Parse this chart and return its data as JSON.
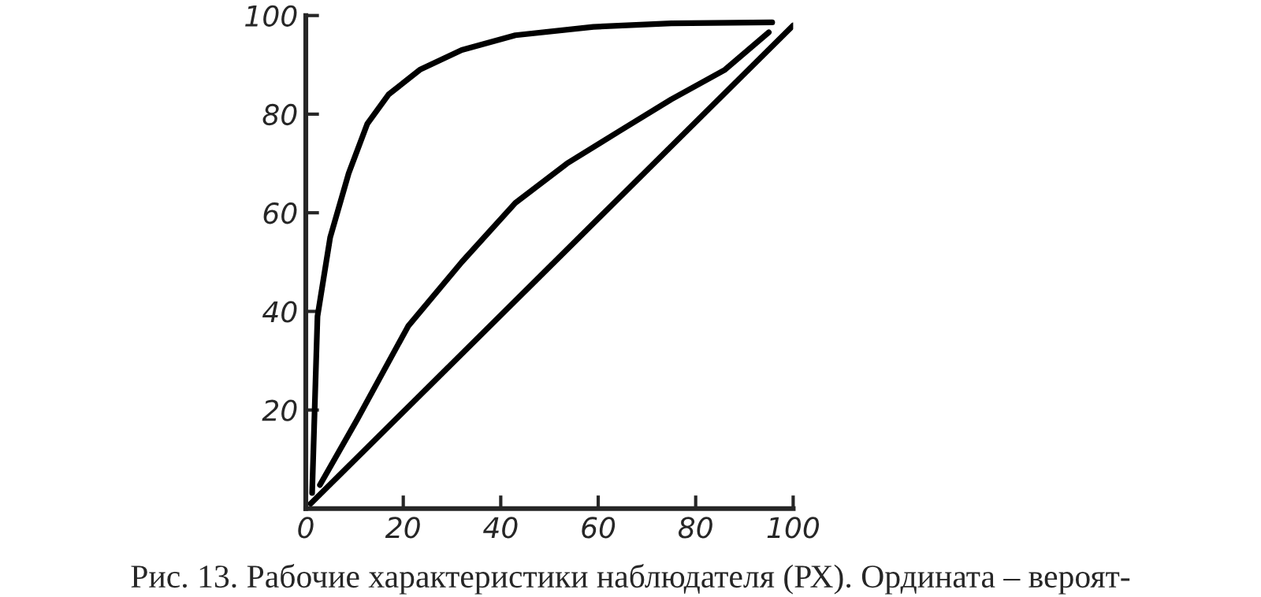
{
  "chart_data": {
    "type": "line",
    "xlim": [
      0,
      100
    ],
    "ylim": [
      0,
      100
    ],
    "xticks": [
      0,
      20,
      40,
      60,
      80,
      100
    ],
    "yticks": [
      {
        "value": 0,
        "label": null
      },
      20,
      40,
      60,
      80,
      100
    ],
    "grid": false,
    "legend": false,
    "marker": "none",
    "line_style": "solid",
    "series": [
      {
        "color": "#000000",
        "x": [
          1.3,
          2.4,
          5,
          8.8,
          12.6,
          17,
          23.4,
          32,
          43,
          59,
          75,
          95.7
        ],
        "values": [
          3.2,
          39,
          55,
          68,
          78,
          84,
          89,
          93,
          96,
          97.7,
          98.4,
          98.6
        ]
      },
      {
        "color": "#000000",
        "x": [
          2.9,
          10.5,
          21,
          32,
          43,
          53.6,
          64.4,
          75,
          86,
          95
        ],
        "values": [
          4.8,
          18,
          37,
          50,
          62,
          70,
          76.6,
          83,
          89,
          96.6
        ]
      },
      {
        "color": "#000000",
        "x": [
          1,
          100
        ],
        "values": [
          1,
          98
        ]
      }
    ],
    "annotations": [
      "Рис. 13. Рабочие характеристики наблюдателя (РХ). Ордината – вероят-"
    ]
  }
}
